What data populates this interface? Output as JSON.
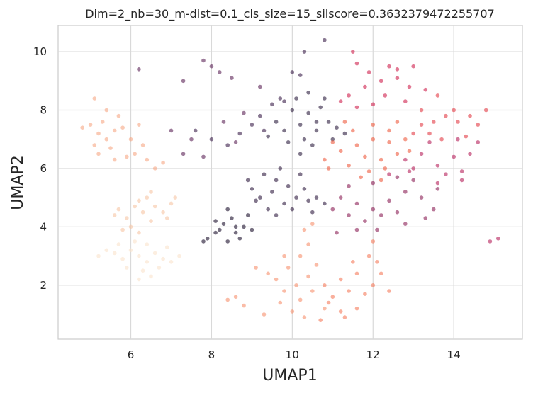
{
  "chart_data": {
    "type": "scatter",
    "title": "Dim=2_nb=30_m-dist=0.1_cls_size=15_silscore=0.3632379472255707",
    "xlabel": "UMAP1",
    "ylabel": "UMAP2",
    "xlim": [
      4.2,
      15.7
    ],
    "ylim": [
      0.15,
      10.9
    ],
    "xticks": [
      6,
      8,
      10,
      12,
      14
    ],
    "yticks": [
      2,
      4,
      6,
      8,
      10
    ],
    "grid": true,
    "legend": "none",
    "clusters": [
      {
        "color": "#1a0f2c",
        "points": [
          [
            7.9,
            3.6
          ],
          [
            8.1,
            3.8
          ],
          [
            8.3,
            4.1
          ],
          [
            8.5,
            4.3
          ],
          [
            8.2,
            3.9
          ],
          [
            8.6,
            3.8
          ],
          [
            8.8,
            4.0
          ],
          [
            8.9,
            4.4
          ],
          [
            8.4,
            4.6
          ],
          [
            8.7,
            3.6
          ],
          [
            9.0,
            3.9
          ],
          [
            8.1,
            4.2
          ],
          [
            7.8,
            3.5
          ],
          [
            8.4,
            3.5
          ],
          [
            8.6,
            4.0
          ]
        ]
      },
      {
        "color": "#2e1b3f",
        "points": [
          [
            9.2,
            5.0
          ],
          [
            9.5,
            5.2
          ],
          [
            9.8,
            4.8
          ],
          [
            10.1,
            5.0
          ],
          [
            10.4,
            4.9
          ],
          [
            9.6,
            5.6
          ],
          [
            9.3,
            5.8
          ],
          [
            9.9,
            5.4
          ],
          [
            10.3,
            5.3
          ],
          [
            10.6,
            5.0
          ],
          [
            9.0,
            5.3
          ],
          [
            9.4,
            4.6
          ],
          [
            10.0,
            4.6
          ],
          [
            10.5,
            4.5
          ],
          [
            10.8,
            4.8
          ],
          [
            9.7,
            6.0
          ],
          [
            10.2,
            5.8
          ],
          [
            9.1,
            4.9
          ],
          [
            8.9,
            5.6
          ],
          [
            9.6,
            4.4
          ]
        ]
      },
      {
        "color": "#2c1c3d",
        "points": [
          [
            9.8,
            7.3
          ],
          [
            10.2,
            7.5
          ],
          [
            10.6,
            7.3
          ],
          [
            10.9,
            7.6
          ],
          [
            10.4,
            7.9
          ],
          [
            10.0,
            8.0
          ],
          [
            10.7,
            8.1
          ],
          [
            11.1,
            7.4
          ],
          [
            10.3,
            7.0
          ],
          [
            9.9,
            6.9
          ],
          [
            10.5,
            6.8
          ],
          [
            11.0,
            7.0
          ],
          [
            9.6,
            7.6
          ],
          [
            10.8,
            8.4
          ],
          [
            10.1,
            8.4
          ],
          [
            10.4,
            8.6
          ],
          [
            9.4,
            7.1
          ],
          [
            11.3,
            7.2
          ],
          [
            10.6,
            7.6
          ],
          [
            10.2,
            6.5
          ]
        ]
      },
      {
        "color": "#3a1e49",
        "points": [
          [
            9.2,
            7.8
          ],
          [
            9.5,
            8.2
          ],
          [
            9.8,
            8.3
          ],
          [
            9.0,
            7.5
          ],
          [
            9.3,
            7.3
          ],
          [
            8.7,
            7.2
          ],
          [
            8.4,
            6.8
          ],
          [
            8.0,
            7.0
          ],
          [
            7.6,
            7.3
          ],
          [
            9.7,
            8.4
          ],
          [
            10.0,
            9.3
          ],
          [
            10.2,
            9.2
          ],
          [
            10.3,
            10.0
          ],
          [
            10.8,
            10.4
          ]
        ]
      },
      {
        "color": "#5b2357",
        "points": [
          [
            7.8,
            9.7
          ],
          [
            8.0,
            9.5
          ],
          [
            8.2,
            9.3
          ],
          [
            8.5,
            9.1
          ],
          [
            7.3,
            9.0
          ],
          [
            6.2,
            9.4
          ],
          [
            7.0,
            7.3
          ],
          [
            7.5,
            7.0
          ],
          [
            8.3,
            7.6
          ],
          [
            8.8,
            7.9
          ],
          [
            9.2,
            8.8
          ],
          [
            8.6,
            6.9
          ],
          [
            7.3,
            6.5
          ],
          [
            7.8,
            6.4
          ]
        ]
      },
      {
        "color": "#8b1e55",
        "points": [
          [
            11.2,
            5.0
          ],
          [
            11.6,
            4.8
          ],
          [
            12.0,
            4.6
          ],
          [
            12.4,
            4.9
          ],
          [
            12.8,
            5.2
          ],
          [
            13.2,
            5.0
          ],
          [
            13.5,
            4.6
          ],
          [
            11.4,
            4.4
          ],
          [
            11.8,
            4.2
          ],
          [
            12.2,
            4.4
          ],
          [
            12.6,
            4.5
          ],
          [
            11.0,
            4.6
          ],
          [
            11.4,
            5.4
          ],
          [
            12.0,
            5.5
          ],
          [
            12.6,
            5.7
          ],
          [
            13.0,
            5.6
          ],
          [
            11.6,
            3.9
          ],
          [
            12.8,
            4.1
          ],
          [
            13.3,
            4.3
          ],
          [
            11.1,
            3.8
          ],
          [
            12.1,
            3.9
          ],
          [
            13.6,
            5.3
          ]
        ]
      },
      {
        "color": "#b51f5a",
        "points": [
          [
            12.8,
            6.3
          ],
          [
            13.2,
            6.5
          ],
          [
            13.6,
            6.1
          ],
          [
            14.0,
            6.4
          ],
          [
            13.4,
            6.9
          ],
          [
            12.9,
            5.9
          ],
          [
            13.8,
            5.8
          ],
          [
            14.2,
            5.9
          ],
          [
            14.4,
            6.5
          ],
          [
            14.6,
            6.9
          ],
          [
            14.1,
            7.0
          ],
          [
            13.0,
            6.0
          ],
          [
            12.4,
            5.8
          ],
          [
            13.6,
            5.5
          ],
          [
            14.2,
            5.6
          ],
          [
            14.9,
            3.5
          ],
          [
            15.1,
            3.6
          ]
        ]
      },
      {
        "color": "#cf1f4c",
        "points": [
          [
            11.4,
            8.5
          ],
          [
            11.8,
            8.8
          ],
          [
            12.2,
            9.0
          ],
          [
            12.6,
            9.1
          ],
          [
            12.9,
            8.8
          ],
          [
            11.6,
            8.1
          ],
          [
            12.0,
            8.2
          ],
          [
            11.2,
            8.3
          ],
          [
            12.8,
            8.3
          ],
          [
            13.0,
            9.5
          ],
          [
            12.4,
            9.5
          ],
          [
            11.9,
            9.3
          ],
          [
            11.6,
            9.6
          ],
          [
            12.3,
            8.5
          ],
          [
            13.3,
            8.7
          ],
          [
            11.5,
            10.0
          ],
          [
            12.6,
            9.4
          ]
        ]
      },
      {
        "color": "#e23a45",
        "points": [
          [
            13.2,
            8.0
          ],
          [
            13.5,
            7.6
          ],
          [
            13.8,
            7.8
          ],
          [
            14.1,
            7.6
          ],
          [
            13.4,
            7.2
          ],
          [
            13.7,
            7.0
          ],
          [
            14.3,
            7.1
          ],
          [
            13.2,
            7.5
          ],
          [
            14.6,
            7.5
          ],
          [
            14.8,
            8.0
          ],
          [
            14.0,
            8.0
          ],
          [
            13.6,
            8.5
          ],
          [
            13.0,
            7.2
          ],
          [
            14.4,
            7.8
          ]
        ]
      },
      {
        "color": "#ef5a3e",
        "points": [
          [
            11.6,
            6.8
          ],
          [
            12.0,
            7.0
          ],
          [
            12.4,
            6.9
          ],
          [
            12.8,
            7.0
          ],
          [
            11.8,
            6.4
          ],
          [
            12.2,
            6.3
          ],
          [
            12.6,
            6.5
          ],
          [
            11.4,
            6.1
          ],
          [
            11.9,
            5.9
          ],
          [
            12.3,
            6.0
          ],
          [
            11.2,
            6.6
          ],
          [
            11.0,
            6.9
          ],
          [
            10.8,
            6.3
          ],
          [
            11.5,
            7.3
          ],
          [
            12.0,
            7.5
          ],
          [
            12.6,
            7.6
          ],
          [
            12.9,
            6.6
          ],
          [
            11.7,
            5.7
          ],
          [
            12.2,
            5.6
          ],
          [
            10.9,
            6.0
          ],
          [
            12.4,
            7.3
          ],
          [
            11.3,
            7.6
          ]
        ]
      },
      {
        "color": "#f57a5a",
        "points": [
          [
            10.8,
            2.0
          ],
          [
            11.2,
            2.2
          ],
          [
            11.6,
            2.4
          ],
          [
            11.4,
            1.8
          ],
          [
            11.0,
            1.6
          ],
          [
            11.8,
            1.7
          ],
          [
            12.0,
            2.0
          ],
          [
            12.2,
            2.4
          ],
          [
            11.6,
            1.2
          ],
          [
            11.2,
            1.1
          ],
          [
            10.9,
            1.4
          ],
          [
            12.4,
            1.8
          ],
          [
            11.5,
            2.8
          ],
          [
            11.9,
            3.0
          ],
          [
            12.0,
            3.5
          ],
          [
            10.7,
            0.8
          ],
          [
            11.3,
            0.9
          ],
          [
            12.1,
            2.8
          ]
        ]
      },
      {
        "color": "#f78f6c",
        "points": [
          [
            9.8,
            1.8
          ],
          [
            10.1,
            2.0
          ],
          [
            10.4,
            2.3
          ],
          [
            9.6,
            2.2
          ],
          [
            9.9,
            2.6
          ],
          [
            10.2,
            1.5
          ],
          [
            10.5,
            1.8
          ],
          [
            9.7,
            1.4
          ],
          [
            10.0,
            1.1
          ],
          [
            10.3,
            0.9
          ],
          [
            9.4,
            2.4
          ],
          [
            9.1,
            2.6
          ],
          [
            8.8,
            1.3
          ],
          [
            8.6,
            1.6
          ],
          [
            8.4,
            1.5
          ],
          [
            10.2,
            3.0
          ],
          [
            10.4,
            3.4
          ],
          [
            10.3,
            3.9
          ],
          [
            10.5,
            4.1
          ],
          [
            9.8,
            3.0
          ],
          [
            10.6,
            2.7
          ],
          [
            9.3,
            1.0
          ],
          [
            10.8,
            1.2
          ]
        ]
      },
      {
        "color": "#f6a784",
        "points": [
          [
            5.0,
            7.5
          ],
          [
            5.2,
            7.2
          ],
          [
            5.4,
            7.0
          ],
          [
            5.6,
            7.3
          ],
          [
            5.3,
            7.6
          ],
          [
            5.1,
            6.8
          ],
          [
            5.5,
            6.7
          ],
          [
            5.8,
            7.4
          ],
          [
            6.0,
            7.0
          ],
          [
            5.2,
            6.5
          ],
          [
            5.6,
            6.3
          ],
          [
            6.1,
            6.5
          ],
          [
            6.4,
            6.3
          ],
          [
            6.6,
            6.0
          ],
          [
            6.8,
            6.2
          ],
          [
            5.1,
            8.4
          ],
          [
            5.4,
            8.0
          ],
          [
            5.7,
            7.8
          ],
          [
            6.2,
            7.5
          ],
          [
            4.8,
            7.4
          ],
          [
            5.9,
            6.4
          ],
          [
            6.3,
            6.8
          ]
        ]
      },
      {
        "color": "#f7c5a4",
        "points": [
          [
            5.7,
            4.6
          ],
          [
            5.9,
            4.3
          ],
          [
            6.1,
            4.7
          ],
          [
            6.3,
            4.5
          ],
          [
            6.5,
            4.2
          ],
          [
            6.0,
            4.0
          ],
          [
            6.2,
            4.9
          ],
          [
            6.4,
            5.0
          ],
          [
            6.6,
            4.7
          ],
          [
            6.8,
            4.5
          ],
          [
            7.0,
            4.8
          ],
          [
            5.8,
            3.9
          ],
          [
            6.2,
            3.8
          ],
          [
            6.5,
            5.2
          ],
          [
            7.1,
            5.0
          ],
          [
            6.9,
            4.3
          ],
          [
            5.6,
            4.4
          ]
        ]
      },
      {
        "color": "#fae2cc",
        "points": [
          [
            5.2,
            3.0
          ],
          [
            5.4,
            3.2
          ],
          [
            5.6,
            3.1
          ],
          [
            5.8,
            2.9
          ],
          [
            6.0,
            3.2
          ],
          [
            6.2,
            3.0
          ],
          [
            6.4,
            2.8
          ],
          [
            6.6,
            3.1
          ],
          [
            6.8,
            2.9
          ],
          [
            7.0,
            2.8
          ],
          [
            7.2,
            3.0
          ],
          [
            6.3,
            2.5
          ],
          [
            6.5,
            2.3
          ],
          [
            6.7,
            2.6
          ],
          [
            6.1,
            3.5
          ],
          [
            6.4,
            3.4
          ],
          [
            6.9,
            3.3
          ],
          [
            5.9,
            2.6
          ],
          [
            6.2,
            2.2
          ],
          [
            5.7,
            3.4
          ]
        ]
      }
    ]
  }
}
